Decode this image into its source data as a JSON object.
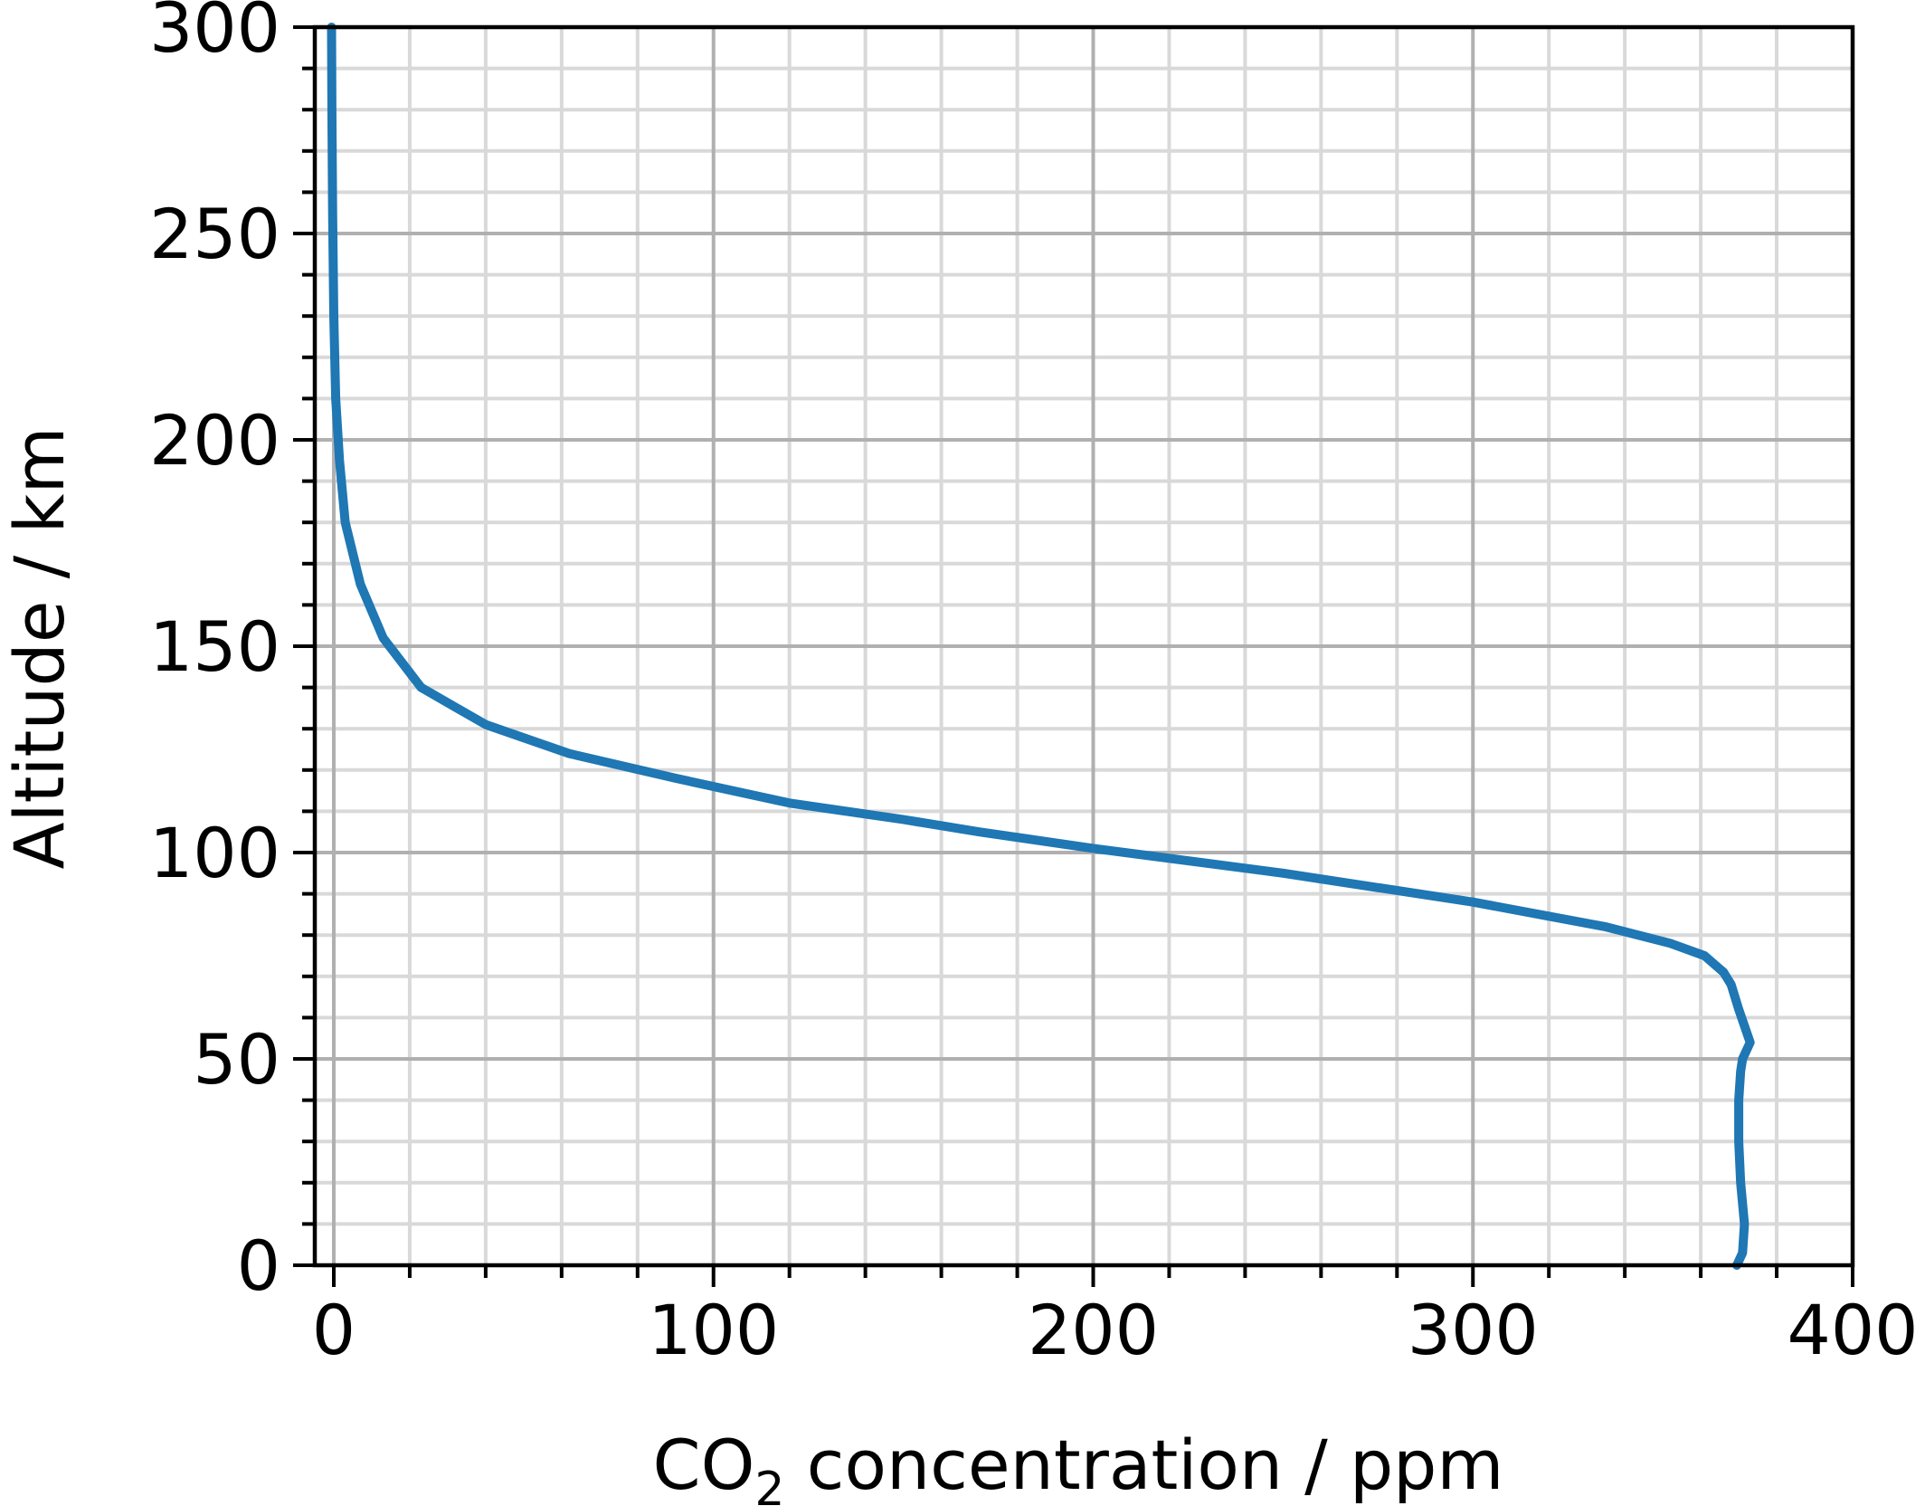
{
  "chart_data": {
    "type": "line",
    "xlabel_main": "CO",
    "xlabel_sub": "2",
    "xlabel_rest": " concentration / ppm",
    "ylabel": "Altitude / km",
    "xlim": [
      -5,
      400
    ],
    "ylim": [
      0,
      300
    ],
    "x_major_ticks": [
      0,
      100,
      200,
      300,
      400
    ],
    "x_tick_labels": [
      "0",
      "100",
      "200",
      "300",
      "400"
    ],
    "x_minor_step": 20,
    "y_major_ticks": [
      0,
      50,
      100,
      150,
      200,
      250,
      300
    ],
    "y_tick_labels": [
      "0",
      "50",
      "100",
      "150",
      "200",
      "250",
      "300"
    ],
    "y_minor_step": 10,
    "grid": true,
    "line_color": "#1f77b4",
    "series": [
      {
        "x": [
          369.5,
          371,
          371.5,
          370.5,
          370,
          370,
          370.5,
          371,
          373,
          370,
          368,
          366,
          361,
          352,
          335,
          300,
          250,
          200,
          170,
          150,
          120,
          90,
          62,
          40,
          23,
          13,
          7,
          3,
          1.5,
          0.5,
          0,
          -0.3,
          -0.5,
          -0.6
        ],
        "y": [
          0,
          3,
          10,
          20,
          30,
          40,
          47,
          50,
          54,
          62,
          68,
          71,
          75,
          78,
          82,
          88,
          95,
          101,
          105,
          108,
          112,
          118,
          124,
          131,
          140,
          152,
          165,
          180,
          195,
          210,
          230,
          255,
          280,
          300
        ]
      }
    ]
  }
}
